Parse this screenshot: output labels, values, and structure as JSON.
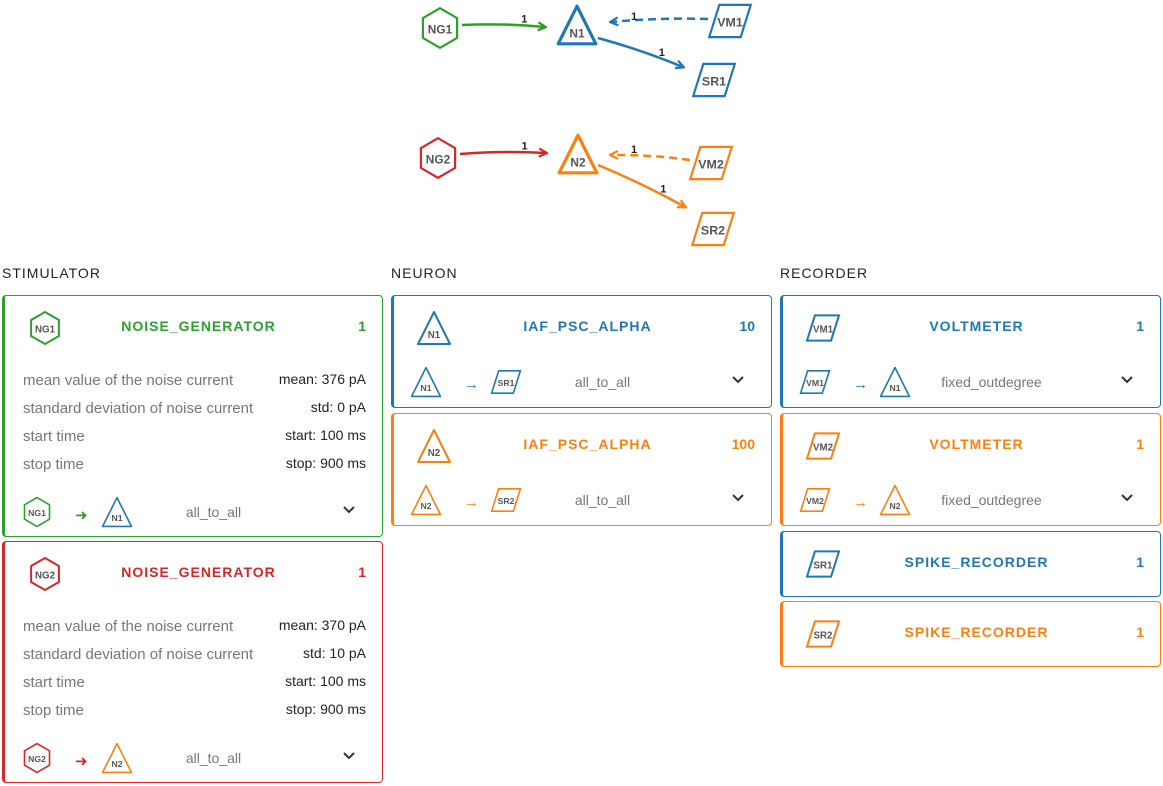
{
  "colors": {
    "green": "#2ca02c",
    "red": "#d62728",
    "blue": "#1f77b4",
    "orange": "#ff7f0e"
  },
  "graph": {
    "nodes": [
      {
        "id": "NG1",
        "label": "NG1",
        "shape": "hexagon",
        "color": "#2ca02c"
      },
      {
        "id": "N1",
        "label": "N1",
        "shape": "triangle",
        "color": "#1f77b4"
      },
      {
        "id": "VM1",
        "label": "VM1",
        "shape": "parallelogram",
        "color": "#1f77b4"
      },
      {
        "id": "SR1",
        "label": "SR1",
        "shape": "parallelogram",
        "color": "#1f77b4"
      },
      {
        "id": "NG2",
        "label": "NG2",
        "shape": "hexagon",
        "color": "#d62728"
      },
      {
        "id": "N2",
        "label": "N2",
        "shape": "triangle",
        "color": "#ff7f0e"
      },
      {
        "id": "VM2",
        "label": "VM2",
        "shape": "parallelogram",
        "color": "#ff7f0e"
      },
      {
        "id": "SR2",
        "label": "SR2",
        "shape": "parallelogram",
        "color": "#ff7f0e"
      }
    ],
    "edges": [
      {
        "from": "NG1",
        "to": "N1",
        "label": "1",
        "dashed": false,
        "color": "#2ca02c"
      },
      {
        "from": "VM1",
        "to": "N1",
        "label": "1",
        "dashed": true,
        "color": "#1f77b4"
      },
      {
        "from": "N1",
        "to": "SR1",
        "label": "1",
        "dashed": false,
        "color": "#1f77b4"
      },
      {
        "from": "NG2",
        "to": "N2",
        "label": "1",
        "dashed": false,
        "color": "#d62728"
      },
      {
        "from": "VM2",
        "to": "N2",
        "label": "1",
        "dashed": true,
        "color": "#ff7f0e"
      },
      {
        "from": "N2",
        "to": "SR2",
        "label": "1",
        "dashed": false,
        "color": "#ff7f0e"
      }
    ]
  },
  "columns": {
    "stimulator": "STIMULATOR",
    "neuron": "NEURON",
    "recorder": "RECORDER"
  },
  "stimulators": [
    {
      "label": "NG1",
      "model": "NOISE_GENERATOR",
      "count": "1",
      "color": "#2ca02c",
      "params": [
        {
          "label": "mean value of the noise current",
          "value": "mean: 376 pA"
        },
        {
          "label": "standard deviation of noise current",
          "value": "std: 0 pA"
        },
        {
          "label": "start time",
          "value": "start: 100 ms"
        },
        {
          "label": "stop time",
          "value": "stop: 900 ms"
        }
      ],
      "connection": {
        "source": "NG1",
        "target": "N1",
        "target_color": "#1f77b4",
        "rule": "all_to_all"
      }
    },
    {
      "label": "NG2",
      "model": "NOISE_GENERATOR",
      "count": "1",
      "color": "#d62728",
      "params": [
        {
          "label": "mean value of the noise current",
          "value": "mean: 370 pA"
        },
        {
          "label": "standard deviation of noise current",
          "value": "std: 10 pA"
        },
        {
          "label": "start time",
          "value": "start: 100 ms"
        },
        {
          "label": "stop time",
          "value": "stop: 900 ms"
        }
      ],
      "connection": {
        "source": "NG2",
        "target": "N2",
        "target_color": "#ff7f0e",
        "rule": "all_to_all"
      }
    }
  ],
  "neurons": [
    {
      "label": "N1",
      "model": "IAF_PSC_ALPHA",
      "count": "10",
      "color": "#1f77b4",
      "connection": {
        "source": "N1",
        "target": "SR1",
        "target_color": "#1f77b4",
        "rule": "all_to_all"
      }
    },
    {
      "label": "N2",
      "model": "IAF_PSC_ALPHA",
      "count": "100",
      "color": "#ff7f0e",
      "connection": {
        "source": "N2",
        "target": "SR2",
        "target_color": "#ff7f0e",
        "rule": "all_to_all"
      }
    }
  ],
  "recorders": [
    {
      "label": "VM1",
      "model": "VOLTMETER",
      "count": "1",
      "color": "#1f77b4",
      "connection": {
        "source": "VM1",
        "target": "N1",
        "target_color": "#1f77b4",
        "rule": "fixed_outdegree"
      }
    },
    {
      "label": "VM2",
      "model": "VOLTMETER",
      "count": "1",
      "color": "#ff7f0e",
      "connection": {
        "source": "VM2",
        "target": "N2",
        "target_color": "#ff7f0e",
        "rule": "fixed_outdegree"
      }
    },
    {
      "label": "SR1",
      "model": "SPIKE_RECORDER",
      "count": "1",
      "color": "#1f77b4"
    },
    {
      "label": "SR2",
      "model": "SPIKE_RECORDER",
      "count": "1",
      "color": "#ff7f0e"
    }
  ]
}
